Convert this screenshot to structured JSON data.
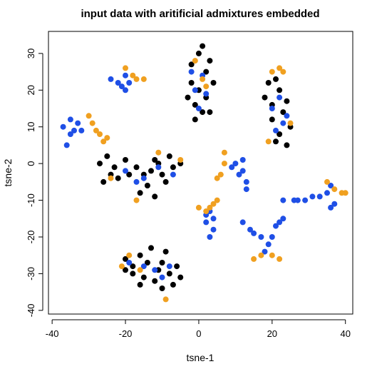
{
  "chart_data": {
    "type": "scatter",
    "title": "input data with aritificial admixtures embedded",
    "xlabel": "tsne-1",
    "ylabel": "tsne-2",
    "xlim": [
      -41,
      42
    ],
    "ylim": [
      -41,
      36
    ],
    "x_ticks": [
      -40,
      -20,
      0,
      20,
      40
    ],
    "y_ticks": [
      -40,
      -30,
      -20,
      -10,
      0,
      10,
      20,
      30
    ],
    "grid": false,
    "legend": "none",
    "colors": {
      "black": "#000000",
      "blue": "#1f4fe6",
      "orange": "#f0a020"
    },
    "clusters": [
      {
        "color": "black",
        "points": [
          [
            -2,
            22
          ],
          [
            0,
            30
          ],
          [
            2,
            25
          ],
          [
            -1,
            16
          ],
          [
            3,
            14
          ],
          [
            0,
            20
          ],
          [
            -2,
            27
          ],
          [
            2,
            18
          ],
          [
            4,
            22
          ],
          [
            -1,
            12
          ],
          [
            1,
            32
          ],
          [
            3,
            28
          ],
          [
            -3,
            18
          ],
          [
            1,
            14
          ]
        ]
      },
      {
        "color": "blue",
        "points": [
          [
            -1,
            20
          ],
          [
            1,
            24
          ],
          [
            0,
            15
          ],
          [
            2,
            19
          ],
          [
            -2,
            25
          ]
        ]
      },
      {
        "color": "orange",
        "points": [
          [
            -1,
            28
          ],
          [
            2,
            21
          ],
          [
            1,
            23
          ]
        ]
      },
      {
        "color": "black",
        "points": [
          [
            18,
            18
          ],
          [
            21,
            23
          ],
          [
            20,
            12
          ],
          [
            22,
            8
          ],
          [
            24,
            17
          ],
          [
            19,
            22
          ],
          [
            23,
            14
          ],
          [
            25,
            10
          ],
          [
            20,
            16
          ],
          [
            22,
            20
          ],
          [
            21,
            6
          ],
          [
            24,
            5
          ]
        ]
      },
      {
        "color": "blue",
        "points": [
          [
            20,
            15
          ],
          [
            23,
            11
          ],
          [
            22,
            18
          ],
          [
            24,
            13
          ],
          [
            21,
            9
          ]
        ]
      },
      {
        "color": "orange",
        "points": [
          [
            20,
            25
          ],
          [
            23,
            25
          ],
          [
            25,
            11
          ],
          [
            19,
            6
          ],
          [
            22,
            26
          ]
        ]
      },
      {
        "color": "blue",
        "points": [
          [
            -24,
            23
          ],
          [
            -20,
            24
          ],
          [
            -20,
            20
          ],
          [
            -19,
            22
          ],
          [
            -21,
            21
          ],
          [
            -22,
            22
          ]
        ]
      },
      {
        "color": "orange",
        "points": [
          [
            -20,
            26
          ],
          [
            -18,
            24
          ],
          [
            -17,
            23
          ],
          [
            -15,
            23
          ]
        ]
      },
      {
        "color": "blue",
        "points": [
          [
            -37,
            10
          ],
          [
            -35,
            8
          ],
          [
            -33,
            11
          ],
          [
            -36,
            5
          ],
          [
            -34,
            9
          ],
          [
            -32,
            9
          ],
          [
            -35,
            12
          ]
        ]
      },
      {
        "color": "orange",
        "points": [
          [
            -30,
            13
          ],
          [
            -29,
            11
          ],
          [
            -28,
            9
          ],
          [
            -27,
            8
          ],
          [
            -26,
            6
          ],
          [
            -25,
            7
          ]
        ]
      },
      {
        "color": "black",
        "points": [
          [
            -27,
            0
          ],
          [
            -25,
            2
          ],
          [
            -23,
            -1
          ],
          [
            -20,
            1
          ],
          [
            -17,
            -1
          ],
          [
            -15,
            -3
          ],
          [
            -13,
            -2
          ],
          [
            -11,
            0
          ],
          [
            -10,
            -3
          ],
          [
            -14,
            -6
          ],
          [
            -16,
            -8
          ],
          [
            -12,
            -9
          ],
          [
            -9,
            -5
          ],
          [
            -7,
            -1
          ],
          [
            -5,
            0
          ],
          [
            -19,
            -3
          ],
          [
            -22,
            -4
          ],
          [
            -24,
            -3
          ],
          [
            -26,
            -5
          ],
          [
            -12,
            1
          ],
          [
            -8,
            2
          ]
        ]
      },
      {
        "color": "blue",
        "points": [
          [
            -20,
            -2
          ],
          [
            -15,
            -4
          ],
          [
            -11,
            -1
          ],
          [
            -7,
            -3
          ],
          [
            -17,
            -5
          ]
        ]
      },
      {
        "color": "orange",
        "points": [
          [
            -11,
            3
          ],
          [
            -5,
            1
          ],
          [
            -17,
            -10
          ],
          [
            -24,
            -4
          ]
        ]
      },
      {
        "color": "blue",
        "points": [
          [
            9,
            -1
          ],
          [
            11,
            -3
          ],
          [
            12,
            1
          ],
          [
            13,
            -5
          ],
          [
            13,
            -7
          ],
          [
            10,
            0
          ],
          [
            12,
            -2
          ]
        ]
      },
      {
        "color": "orange",
        "points": [
          [
            7,
            3
          ],
          [
            7,
            0
          ],
          [
            6,
            -3
          ],
          [
            5,
            -4
          ]
        ]
      },
      {
        "color": "blue",
        "points": [
          [
            3,
            -13
          ],
          [
            2,
            -16
          ],
          [
            4,
            -18
          ],
          [
            3,
            -20
          ],
          [
            2,
            -14
          ],
          [
            4,
            -15
          ]
        ]
      },
      {
        "color": "orange",
        "points": [
          [
            0,
            -12
          ],
          [
            2,
            -13
          ],
          [
            3,
            -12
          ],
          [
            4,
            -11
          ],
          [
            5,
            -10
          ]
        ]
      },
      {
        "color": "blue",
        "points": [
          [
            17,
            -20
          ],
          [
            19,
            -22
          ],
          [
            15,
            -19
          ],
          [
            14,
            -18
          ],
          [
            21,
            -17
          ],
          [
            22,
            -16
          ],
          [
            23,
            -15
          ],
          [
            18,
            -24
          ],
          [
            20,
            -20
          ],
          [
            12,
            -16
          ]
        ]
      },
      {
        "color": "orange",
        "points": [
          [
            15,
            -26
          ],
          [
            17,
            -25
          ],
          [
            20,
            -25
          ],
          [
            22,
            -26
          ]
        ]
      },
      {
        "color": "blue",
        "points": [
          [
            23,
            -10
          ],
          [
            26,
            -10
          ],
          [
            29,
            -10
          ],
          [
            31,
            -9
          ],
          [
            33,
            -9
          ],
          [
            35,
            -8
          ],
          [
            36,
            -6
          ],
          [
            37,
            -11
          ],
          [
            36,
            -12
          ],
          [
            27,
            -10
          ]
        ]
      },
      {
        "color": "orange",
        "points": [
          [
            35,
            -5
          ],
          [
            37,
            -7
          ],
          [
            39,
            -8
          ],
          [
            40,
            -8
          ]
        ]
      },
      {
        "color": "black",
        "points": [
          [
            -20,
            -26
          ],
          [
            -18,
            -28
          ],
          [
            -16,
            -25
          ],
          [
            -13,
            -23
          ],
          [
            -10,
            -27
          ],
          [
            -8,
            -30
          ],
          [
            -5,
            -31
          ],
          [
            -7,
            -33
          ],
          [
            -10,
            -34
          ],
          [
            -12,
            -32
          ],
          [
            -15,
            -31
          ],
          [
            -18,
            -30
          ],
          [
            -20,
            -29
          ],
          [
            -14,
            -27
          ],
          [
            -11,
            -29
          ],
          [
            -6,
            -28
          ],
          [
            -9,
            -24
          ],
          [
            -16,
            -33
          ]
        ]
      },
      {
        "color": "blue",
        "points": [
          [
            -19,
            -27
          ],
          [
            -15,
            -28
          ],
          [
            -12,
            -29
          ],
          [
            -10,
            -31
          ],
          [
            -8,
            -28
          ]
        ]
      },
      {
        "color": "orange",
        "points": [
          [
            -21,
            -28
          ],
          [
            -19,
            -25
          ],
          [
            -9,
            -37
          ],
          [
            -16,
            -29
          ]
        ]
      }
    ]
  }
}
